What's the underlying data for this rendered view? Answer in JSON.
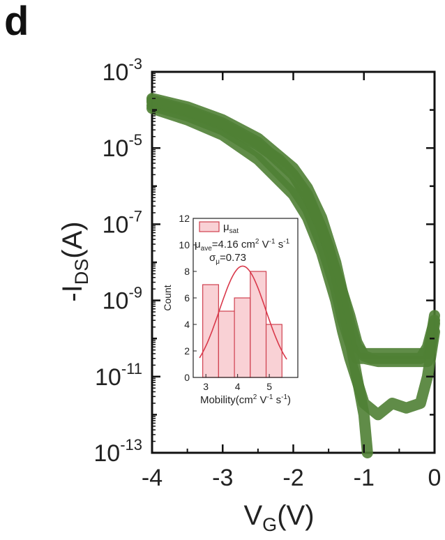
{
  "panel_label": "d",
  "chart_data": [
    {
      "type": "line",
      "xlabel": "VG(V)",
      "xlabel_main": "V",
      "xlabel_sub": "G",
      "xlabel_unit": "(V)",
      "ylabel": "-IDS(A)",
      "ylabel_main": "-I",
      "ylabel_sub": "DS",
      "ylabel_unit": "(A)",
      "xlim": [
        -4,
        0
      ],
      "y_scale": "log",
      "ylim": [
        1e-13,
        0.001
      ],
      "x_ticks": [
        -4,
        -3,
        -2,
        -1,
        0
      ],
      "x_tick_labels": [
        "-4",
        "-3",
        "-2",
        "-1",
        "0"
      ],
      "y_ticks": [
        0.001,
        1e-05,
        1e-07,
        1e-09,
        1e-11,
        1e-13
      ],
      "y_tick_labels": [
        {
          "base": "10",
          "exp": "-3"
        },
        {
          "base": "10",
          "exp": "-5"
        },
        {
          "base": "10",
          "exp": "-7"
        },
        {
          "base": "10",
          "exp": "-9"
        },
        {
          "base": "10",
          "exp": "-11"
        },
        {
          "base": "10",
          "exp": "-13"
        }
      ],
      "series_color": "#4f7f34",
      "series": [
        {
          "x": [
            -4.0,
            -3.5,
            -3.0,
            -2.5,
            -2.0,
            -1.8,
            -1.6,
            -1.4,
            -1.3,
            -1.2,
            -1.1,
            -1.0,
            -0.8,
            -0.6,
            -0.4,
            -0.2,
            -0.1,
            -0.05,
            0.0
          ],
          "y": [
            0.0002,
            0.00012,
            5.5e-05,
            1.8e-05,
            3e-06,
            9e-07,
            1.5e-07,
            1e-08,
            1.5e-09,
            2.5e-10,
            6e-11,
            4e-11,
            4e-11,
            4e-11,
            4e-11,
            4e-11,
            4e-11,
            1e-10,
            4e-10
          ]
        },
        {
          "x": [
            -4.0,
            -3.5,
            -3.0,
            -2.5,
            -2.0,
            -1.8,
            -1.6,
            -1.4,
            -1.3,
            -1.2,
            -1.1,
            -1.0,
            -0.8,
            -0.6,
            -0.4,
            -0.2,
            -0.1,
            -0.05,
            0.0
          ],
          "y": [
            0.00013,
            7e-05,
            3e-05,
            8e-06,
            9e-07,
            2.5e-07,
            3e-08,
            2e-09,
            3e-10,
            8e-11,
            3e-11,
            3e-11,
            2.5e-11,
            2.5e-11,
            2.5e-11,
            2.5e-11,
            2.5e-11,
            6e-11,
            2.5e-10
          ]
        },
        {
          "x": [
            -4.0,
            -3.5,
            -3.0,
            -2.5,
            -2.2,
            -2.0,
            -1.8,
            -1.6,
            -1.4,
            -1.2,
            -1.1,
            -1.0,
            -0.9,
            -0.8,
            -0.6,
            -0.4,
            -0.2,
            -0.1,
            0.0
          ],
          "y": [
            0.00016,
            9e-05,
            4e-05,
            1.2e-05,
            5e-06,
            2e-06,
            5e-07,
            8e-08,
            6e-09,
            4e-10,
            8e-11,
            3.5e-11,
            3e-11,
            3e-11,
            3e-11,
            3e-11,
            3e-11,
            6e-11,
            3e-10
          ]
        },
        {
          "x": [
            -4.0,
            -3.5,
            -3.0,
            -2.5,
            -2.0,
            -1.8,
            -1.6,
            -1.4,
            -1.3,
            -1.2,
            -1.1,
            -1.0,
            -0.8,
            -0.6,
            -0.4,
            -0.2,
            -0.1,
            0.0
          ],
          "y": [
            0.00011,
            5.5e-05,
            2.2e-05,
            5e-06,
            6e-07,
            1.5e-07,
            1.8e-08,
            1e-09,
            1.5e-10,
            3e-11,
            8e-12,
            2e-12,
            1e-12,
            2e-12,
            1.5e-12,
            2e-12,
            1e-11,
            1.5e-10
          ]
        },
        {
          "x": [
            -4.0,
            -3.5,
            -3.0,
            -2.5,
            -2.0,
            -1.8,
            -1.6,
            -1.5,
            -1.4,
            -1.3,
            -1.2,
            -1.1,
            -1.0,
            -0.95
          ],
          "y": [
            0.00018,
            0.0001,
            4.5e-05,
            1.4e-05,
            2e-06,
            6e-07,
            8e-08,
            2.5e-08,
            5e-09,
            8e-10,
            1e-10,
            1e-11,
            1e-12,
            1e-13
          ]
        }
      ]
    },
    {
      "type": "histogram",
      "xlabel": "Mobility(cm2 V-1 s-1)",
      "ylabel": "Count",
      "xlim": [
        2.6,
        5.9
      ],
      "ylim": [
        0,
        12
      ],
      "x_ticks": [
        3,
        4,
        5
      ],
      "y_ticks": [
        0,
        2,
        4,
        6,
        8,
        10,
        12
      ],
      "bin_edges": [
        2.9,
        3.4,
        3.9,
        4.4,
        4.9,
        5.4
      ],
      "counts": [
        7,
        5,
        6,
        8,
        4
      ],
      "fit": {
        "type": "gaussian",
        "mean": 4.16,
        "sigma": 0.73,
        "peak": 8.4
      },
      "legend_label": "μ",
      "legend_label_sub": "sat",
      "ann_mu_label": "μ",
      "ann_mu_sub": "ave",
      "ann_mu_value": "=4.16 cm",
      "ann_mu_units": " V",
      "ann_mu_units2": " s",
      "ann_sigma_label": "σ",
      "ann_sigma_sub": "μ",
      "ann_sigma_value": "=0.73",
      "colors": {
        "bar_fill": "#f9d1d5",
        "bar_stroke": "#cf3f4e",
        "fit_line": "#d9384a"
      }
    }
  ]
}
